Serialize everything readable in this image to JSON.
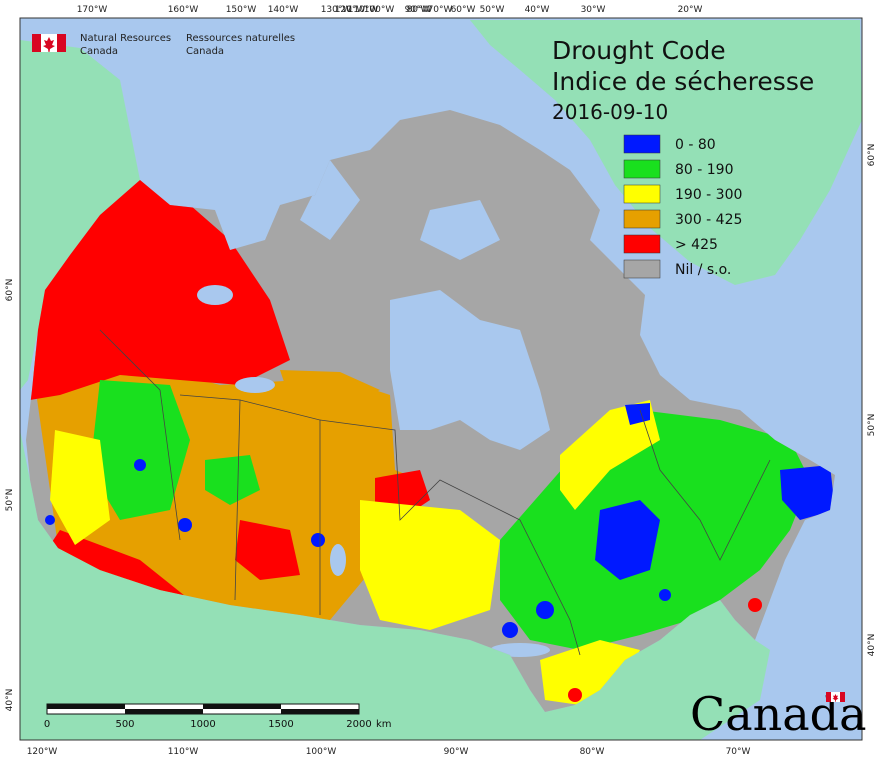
{
  "header": {
    "org_en_1": "Natural Resources",
    "org_en_2": "Canada",
    "org_fr_1": "Ressources naturelles",
    "org_fr_2": "Canada"
  },
  "title": {
    "line1": "Drought Code",
    "line2": "Indice de sécheresse",
    "date": "2016-09-10"
  },
  "legend": [
    {
      "label": "0 - 80",
      "color": "#0019ff"
    },
    {
      "label": "80 - 190",
      "color": "#19e01e"
    },
    {
      "label": "190 - 300",
      "color": "#ffff00"
    },
    {
      "label": "300 - 425",
      "color": "#e6a000"
    },
    {
      "label": "> 425",
      "color": "#ff0000"
    },
    {
      "label": "Nil / s.o.",
      "color": "#a6a6a6"
    }
  ],
  "colors": {
    "ocean": "#a9c8ee",
    "foreign_land": "#94e0b6",
    "nodata": "#a6a6a6"
  },
  "ticks": {
    "top": [
      "170°W",
      "160°W",
      "150°W",
      "140°W",
      "130°W",
      "120°W",
      "110°W",
      "100°W",
      "90°W",
      "80°W",
      "70°W",
      "60°W",
      "50°W",
      "40°W",
      "30°W",
      "20°W"
    ],
    "bottom": [
      "120°W",
      "110°W",
      "100°W",
      "90°W",
      "80°W",
      "70°W"
    ],
    "left": [
      "60°N",
      "50°N",
      "40°N"
    ],
    "right": [
      "60°N",
      "50°N",
      "40°N"
    ]
  },
  "scalebar": {
    "labels": [
      "0",
      "500",
      "1000",
      "1500",
      "2000"
    ],
    "unit": "km"
  },
  "wordmark": "Canada"
}
